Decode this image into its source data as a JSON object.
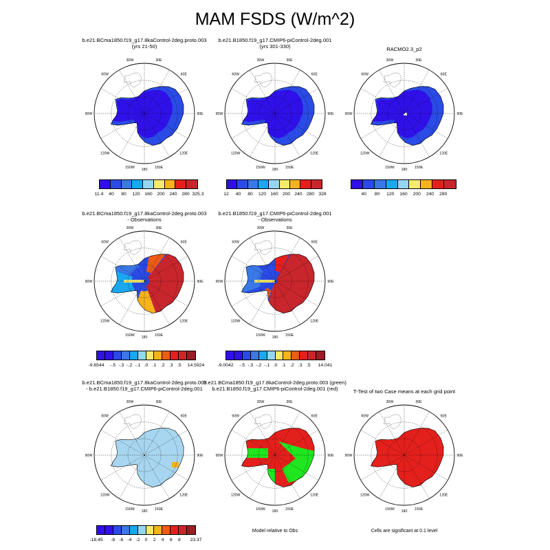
{
  "title": "MAM FSDS (W/m^2)",
  "lon_labels": [
    "30W",
    "30E",
    "60W",
    "60E",
    "90W",
    "90E",
    "120W",
    "120E",
    "150W",
    "150E",
    "180"
  ],
  "colors": {
    "c11": [
      "#3010e8",
      "#2a4be6",
      "#3a78e8",
      "#19a8ef",
      "#94d6f0",
      "#f6ea6a",
      "#f7b21c",
      "#ef5a14",
      "#e4201c",
      "#c8262c",
      "#9b1c24"
    ],
    "mask_red": "#e4201c",
    "mask_green": "#1fe61f",
    "diff_light": "#a8d6f0"
  },
  "panels": [
    {
      "id": "p1",
      "title_lines": [
        "b.e21.BCma1850.f19_g17.8kaControl-2deg.proto.003",
        "(yrs 21-50)"
      ],
      "colorbar": {
        "n": 8,
        "palette": "seq",
        "labels": [
          "11.4",
          "40",
          "80",
          "120",
          "160",
          "200",
          "240",
          "280",
          "325.3"
        ]
      }
    },
    {
      "id": "p2",
      "title_lines": [
        "b.e21.B1850.f19_g17.CMIP6-piControl-2deg.001",
        "(yrs 301-330)"
      ],
      "colorbar": {
        "n": 8,
        "palette": "seq",
        "labels": [
          "12",
          "40",
          "80",
          "120",
          "160",
          "200",
          "240",
          "280",
          "328"
        ]
      }
    },
    {
      "id": "p3",
      "title_lines": [
        "RACMO2.3_p2"
      ],
      "colorbar": {
        "n": 8,
        "palette": "seq",
        "labels": [
          "",
          "40",
          "80",
          "120",
          "160",
          "200",
          "240",
          "280",
          ""
        ]
      }
    },
    {
      "id": "p4",
      "title_lines": [
        "b.e21.BCma1850.f19_g17.8kaControl-2deg.proto.003",
        "- Observations"
      ],
      "colorbar": {
        "n": 11,
        "palette": "div",
        "labels": [
          "-9.6544",
          "",
          "-.5",
          "-.3",
          "-.2",
          "-.1",
          ".0",
          ".1",
          ".2",
          ".3",
          ".5",
          "",
          "14.5924"
        ]
      }
    },
    {
      "id": "p5",
      "title_lines": [
        "b.e21.B1850.f19_g17.CMIP6-piControl-2deg.001",
        "- Observations"
      ],
      "colorbar": {
        "n": 11,
        "palette": "div",
        "labels": [
          "-9.0042",
          "",
          "-.5",
          "-.3",
          "-.2",
          "-.1",
          ".0",
          ".1",
          ".2",
          ".3",
          ".5",
          "",
          "14.041"
        ]
      }
    },
    {
      "id": "p7",
      "title_lines": [
        "b.e21.BCma1850.f19_g17.8kaControl-2deg.proto.003",
        "- b.e21.B1850.f19_g17.CMIP6-piControl-2deg.001"
      ],
      "colorbar": {
        "n": 11,
        "palette": "div",
        "labels": [
          "-18.45",
          "",
          "-8",
          "-6",
          "-4",
          "-2",
          "0",
          "2",
          "4",
          "6",
          "8",
          "",
          "23.37"
        ]
      }
    },
    {
      "id": "p8",
      "title_lines": [
        "b.e21.BCma1850.f19_g17.8kaControl-2deg.proto.003 (green)",
        "b.e21.B1850.f19_g17.CMIP6-piControl-2deg.001 (red)"
      ],
      "note": "Model relative to Obs"
    },
    {
      "id": "p9",
      "title_lines": [
        "T-Test of two Case means at each grid point"
      ],
      "note": "Cells are significant at 0.1 level"
    }
  ],
  "chart_data": [
    {
      "type": "heatmap",
      "panel": "p1",
      "projection": "south-polar-stereographic",
      "units": "W/m^2",
      "min": 11.4,
      "max": 325.3,
      "levels": [
        40,
        80,
        120,
        160,
        200,
        240,
        280
      ]
    },
    {
      "type": "heatmap",
      "panel": "p2",
      "projection": "south-polar-stereographic",
      "units": "W/m^2",
      "min": 12,
      "max": 328,
      "levels": [
        40,
        80,
        120,
        160,
        200,
        240,
        280
      ]
    },
    {
      "type": "heatmap",
      "panel": "p3",
      "projection": "south-polar-stereographic",
      "units": "W/m^2",
      "levels": [
        40,
        80,
        120,
        160,
        200,
        240,
        280
      ]
    },
    {
      "type": "heatmap",
      "panel": "p4",
      "projection": "south-polar-stereographic",
      "min": -9.6544,
      "max": 14.5924,
      "levels": [
        -0.5,
        -0.3,
        -0.2,
        -0.1,
        0,
        0.1,
        0.2,
        0.3,
        0.5
      ]
    },
    {
      "type": "heatmap",
      "panel": "p5",
      "projection": "south-polar-stereographic",
      "min": -9.0042,
      "max": 14.041,
      "levels": [
        -0.5,
        -0.3,
        -0.2,
        -0.1,
        0,
        0.1,
        0.2,
        0.3,
        0.5
      ]
    },
    {
      "type": "heatmap",
      "panel": "p7",
      "projection": "south-polar-stereographic",
      "min": -18.45,
      "max": 23.37,
      "levels": [
        -8,
        -6,
        -4,
        -2,
        0,
        2,
        4,
        6,
        8
      ]
    },
    {
      "type": "heatmap",
      "panel": "p8",
      "projection": "south-polar-stereographic",
      "categories": [
        "green",
        "red"
      ]
    },
    {
      "type": "heatmap",
      "panel": "p9",
      "projection": "south-polar-stereographic",
      "categories": [
        "significant"
      ]
    }
  ]
}
